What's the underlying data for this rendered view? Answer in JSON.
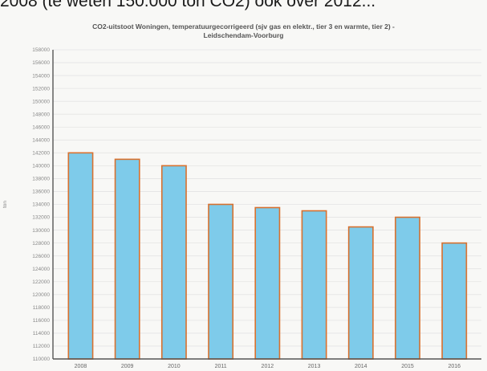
{
  "document": {
    "partial_text_line": "2008 (te weten 150.000 ton CO2) ook over 2012..."
  },
  "chart_data": {
    "type": "bar",
    "title_line1": "CO2-uitstoot Woningen, temperatuurgecorrigeerd (sjv gas en elektr., tier 3 en warmte, tier 2) -",
    "title_line2": "Leidschendam-Voorburg",
    "xlabel": "",
    "ylabel": "ton",
    "categories": [
      "2008",
      "2009",
      "2010",
      "2011",
      "2012",
      "2013",
      "2014",
      "2015",
      "2016"
    ],
    "values": [
      142000,
      141000,
      140000,
      134000,
      133500,
      133000,
      130500,
      132000,
      128000
    ],
    "ylim": [
      110000,
      158000
    ],
    "yticks": [
      110000,
      112000,
      114000,
      116000,
      118000,
      120000,
      122000,
      124000,
      126000,
      128000,
      130000,
      132000,
      134000,
      136000,
      138000,
      140000,
      142000,
      144000,
      146000,
      148000,
      150000,
      152000,
      154000,
      156000,
      158000
    ],
    "grid": true,
    "legend": "none",
    "colors": {
      "bar_fill": "#7ecbea",
      "bar_stroke": "#d8712f",
      "grid": "#e4e4e4",
      "axis": "#555555"
    }
  }
}
